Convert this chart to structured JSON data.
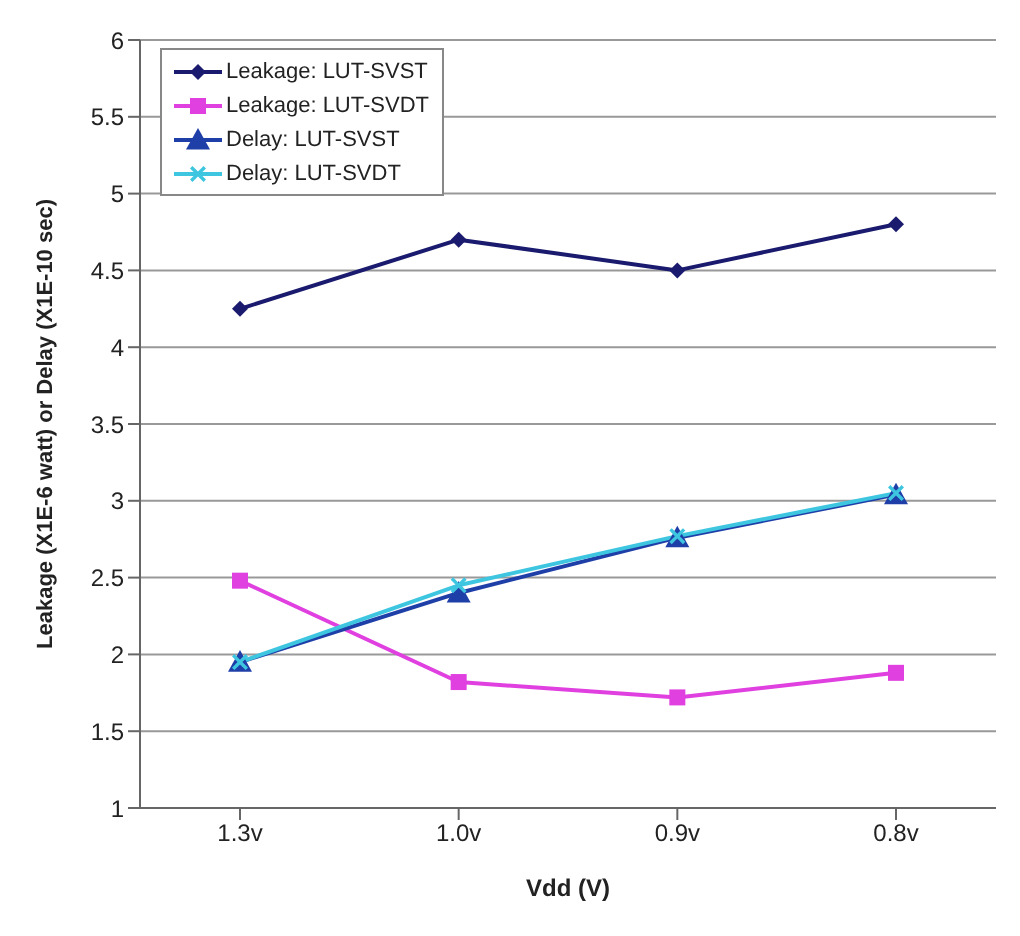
{
  "chart_data": {
    "type": "line",
    "xlabel": "Vdd (V)",
    "ylabel": "Leakage (X1E-6 watt) or Delay (X1E-10 sec)",
    "categories": [
      "1.3v",
      "1.0v",
      "0.9v",
      "0.8v"
    ],
    "series": [
      {
        "name": "Leakage: LUT-SVST",
        "color": "#1a1a6e",
        "marker": "diamond",
        "values": [
          4.25,
          4.7,
          4.5,
          4.8
        ]
      },
      {
        "name": "Leakage: LUT-SVDT",
        "color": "#e040e0",
        "marker": "square",
        "values": [
          2.48,
          1.82,
          1.72,
          1.88
        ]
      },
      {
        "name": "Delay: LUT-SVST",
        "color": "#1f3fa8",
        "marker": "triangle",
        "values": [
          1.95,
          2.4,
          2.76,
          3.04
        ]
      },
      {
        "name": "Delay: LUT-SVDT",
        "color": "#3ec6e0",
        "marker": "cross",
        "values": [
          1.95,
          2.45,
          2.77,
          3.05
        ]
      }
    ],
    "ylim": [
      1,
      6
    ],
    "yticks": [
      1,
      1.5,
      2,
      2.5,
      3,
      3.5,
      4,
      4.5,
      5,
      5.5,
      6
    ],
    "grid": "y",
    "legend": "top left"
  }
}
